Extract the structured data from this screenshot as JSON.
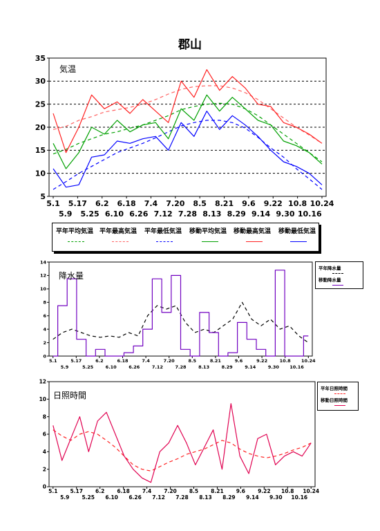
{
  "title": "郡山",
  "chart_data": [
    {
      "type": "line",
      "title": "気温",
      "ylim": [
        5,
        35
      ],
      "yticks": [
        5,
        10,
        15,
        20,
        25,
        30,
        35
      ],
      "x_tick_labels_upper": [
        "5.1",
        "5.17",
        "6.2",
        "6.18",
        "7.4",
        "7.20",
        "8.5",
        "8.21",
        "9.6",
        "9.22",
        "10.8",
        "10.24"
      ],
      "x_tick_labels_lower": [
        "5.9",
        "5.25",
        "6.10",
        "6.26",
        "7.12",
        "7.28",
        "8.13",
        "8.29",
        "9.14",
        "9.30",
        "10.16"
      ],
      "grid": "horizontal-dashed",
      "legend_position": "bottom",
      "series": [
        {
          "name": "平年平均気温",
          "color": "#00a000",
          "dashed": true,
          "values": [
            14.2,
            15.2,
            16.5,
            17.5,
            18.5,
            19.0,
            19.8,
            20.5,
            21.5,
            22.5,
            23.8,
            24.5,
            25.0,
            25.2,
            25.0,
            24.0,
            22.5,
            20.5,
            18.5,
            16.5,
            14.5,
            12.5
          ]
        },
        {
          "name": "平年最高気温",
          "color": "#ff6060",
          "dashed": true,
          "values": [
            19.5,
            20.2,
            21.5,
            22.3,
            23.3,
            23.8,
            24.3,
            25.0,
            26.0,
            27.2,
            28.2,
            28.8,
            29.0,
            29.0,
            28.5,
            27.5,
            26.0,
            24.0,
            22.0,
            20.0,
            18.3,
            16.5
          ]
        },
        {
          "name": "平年最低気温",
          "color": "#0000ff",
          "dashed": true,
          "values": [
            6.5,
            8.2,
            10.0,
            11.5,
            13.0,
            14.5,
            15.5,
            16.5,
            17.7,
            19.0,
            20.3,
            21.0,
            21.5,
            21.5,
            21.0,
            19.8,
            17.8,
            15.5,
            13.5,
            11.0,
            8.8,
            6.5
          ]
        },
        {
          "name": "移動平均気温",
          "color": "#00a000",
          "dashed": false,
          "values": [
            16.5,
            11.0,
            14.5,
            20.0,
            18.5,
            21.5,
            19.0,
            20.5,
            21.0,
            17.5,
            24.0,
            21.5,
            27.0,
            23.5,
            26.5,
            24.0,
            21.5,
            20.5,
            17.0,
            16.0,
            14.5,
            12.0
          ]
        },
        {
          "name": "移動最高気温",
          "color": "#ff2020",
          "dashed": false,
          "values": [
            23.0,
            14.5,
            20.0,
            27.0,
            24.0,
            25.5,
            23.0,
            26.0,
            23.5,
            21.0,
            30.0,
            26.5,
            32.5,
            28.0,
            31.0,
            28.5,
            25.0,
            24.5,
            21.0,
            20.0,
            18.5,
            16.5
          ]
        },
        {
          "name": "移動最低気温",
          "color": "#0000ff",
          "dashed": false,
          "values": [
            11.0,
            7.0,
            7.5,
            13.5,
            14.0,
            17.0,
            16.5,
            17.5,
            18.0,
            15.0,
            21.0,
            18.0,
            23.5,
            19.5,
            22.5,
            20.5,
            18.0,
            15.0,
            12.5,
            11.5,
            10.0,
            7.5
          ]
        }
      ]
    },
    {
      "type": "line",
      "title": "降水量",
      "ylim": [
        0,
        14
      ],
      "yticks": [
        0,
        2,
        4,
        6,
        8,
        10,
        12,
        14
      ],
      "x_tick_labels_upper": [
        "5.1",
        "5.17",
        "6.2",
        "6.18",
        "7.4",
        "7.20",
        "8.5",
        "8.21",
        "9.6",
        "9.22",
        "10.8",
        "10.24"
      ],
      "x_tick_labels_lower": [
        "5.9",
        "5.25",
        "6.10",
        "6.26",
        "7.12",
        "7.28",
        "8.13",
        "8.29",
        "9.14",
        "9.30",
        "10.16"
      ],
      "legend_position": "right",
      "series": [
        {
          "name": "平年降水量",
          "color": "#000000",
          "dashed": true,
          "values": [
            2.5,
            3.5,
            4.0,
            3.5,
            3.0,
            2.8,
            3.0,
            2.8,
            3.5,
            3.0,
            6.0,
            7.5,
            7.0,
            7.5,
            5.0,
            3.5,
            4.0,
            3.5,
            4.5,
            5.5,
            8.0,
            5.5,
            4.5,
            5.5,
            4.0,
            4.5,
            3.0,
            2.0
          ]
        },
        {
          "name": "移動降水量",
          "color": "#7000c0",
          "dashed": false,
          "values": [
            0.0,
            7.5,
            11.5,
            2.5,
            0.0,
            1.0,
            0.0,
            0.0,
            0.5,
            1.5,
            4.0,
            11.5,
            6.5,
            12.0,
            1.0,
            0.0,
            6.5,
            3.5,
            0.0,
            0.5,
            5.0,
            2.5,
            1.0,
            0.0,
            12.8,
            0.0,
            0.0,
            3.0
          ]
        }
      ]
    },
    {
      "type": "line",
      "title": "日照時間",
      "ylim": [
        0,
        12
      ],
      "yticks": [
        0,
        2,
        4,
        6,
        8,
        10,
        12
      ],
      "x_tick_labels_upper": [
        "5.1",
        "5.17",
        "6.2",
        "6.18",
        "7.4",
        "7.20",
        "8.5",
        "8.21",
        "9.6",
        "9.22",
        "10.8",
        "10.24"
      ],
      "x_tick_labels_lower": [
        "5.9",
        "5.25",
        "6.10",
        "6.26",
        "7.12",
        "7.28",
        "8.13",
        "8.29",
        "9.14",
        "9.30",
        "10.16"
      ],
      "legend_position": "right",
      "series": [
        {
          "name": "平年日照時間",
          "color": "#ff2020",
          "dashed": true,
          "values": [
            6.5,
            5.8,
            5.3,
            6.0,
            6.3,
            6.0,
            5.3,
            4.5,
            3.5,
            2.5,
            2.0,
            1.8,
            2.3,
            2.8,
            3.2,
            3.7,
            4.0,
            4.3,
            4.8,
            5.3,
            5.0,
            4.3,
            3.8,
            3.5,
            3.3,
            3.5,
            3.8,
            4.2,
            4.5,
            5.0
          ]
        },
        {
          "name": "移動日照時間",
          "color": "#e00050",
          "dashed": false,
          "values": [
            7.0,
            3.0,
            5.5,
            8.0,
            4.0,
            7.5,
            8.5,
            6.0,
            3.5,
            2.0,
            1.0,
            0.5,
            4.0,
            5.0,
            7.0,
            5.0,
            2.5,
            4.5,
            6.5,
            2.0,
            9.5,
            3.5,
            1.5,
            5.5,
            6.0,
            2.5,
            3.5,
            4.0,
            3.5,
            5.0
          ]
        }
      ]
    }
  ],
  "legends": {
    "temperature": [
      "平年平均気温",
      "平年最高気温",
      "平年最低気温",
      "移動平均気温",
      "移動最高気温",
      "移動最低気温"
    ],
    "precipitation": [
      "平年降水量",
      "移動降水量"
    ],
    "sunshine": [
      "平年日照時間",
      "移動日照時間"
    ]
  }
}
